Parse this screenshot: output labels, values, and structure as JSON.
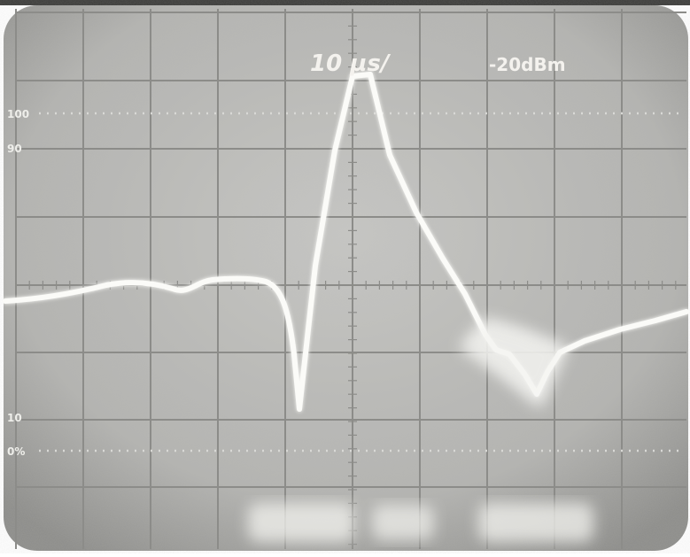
{
  "screen": {
    "sweep_label": "10 µs/",
    "level_label": "-20dBm",
    "marker_100": "100",
    "marker_90": "90",
    "marker_10": "10",
    "marker_0": "0%",
    "bottom_text": "TEKTRONIX  7000 ... ",
    "colors": {
      "screen": "#b9b9b6",
      "screen_dark": "#7f7f7c",
      "grid": "#8f8f8c",
      "trace": "#fbfbf8",
      "bezel": "#2a2a28"
    }
  }
}
